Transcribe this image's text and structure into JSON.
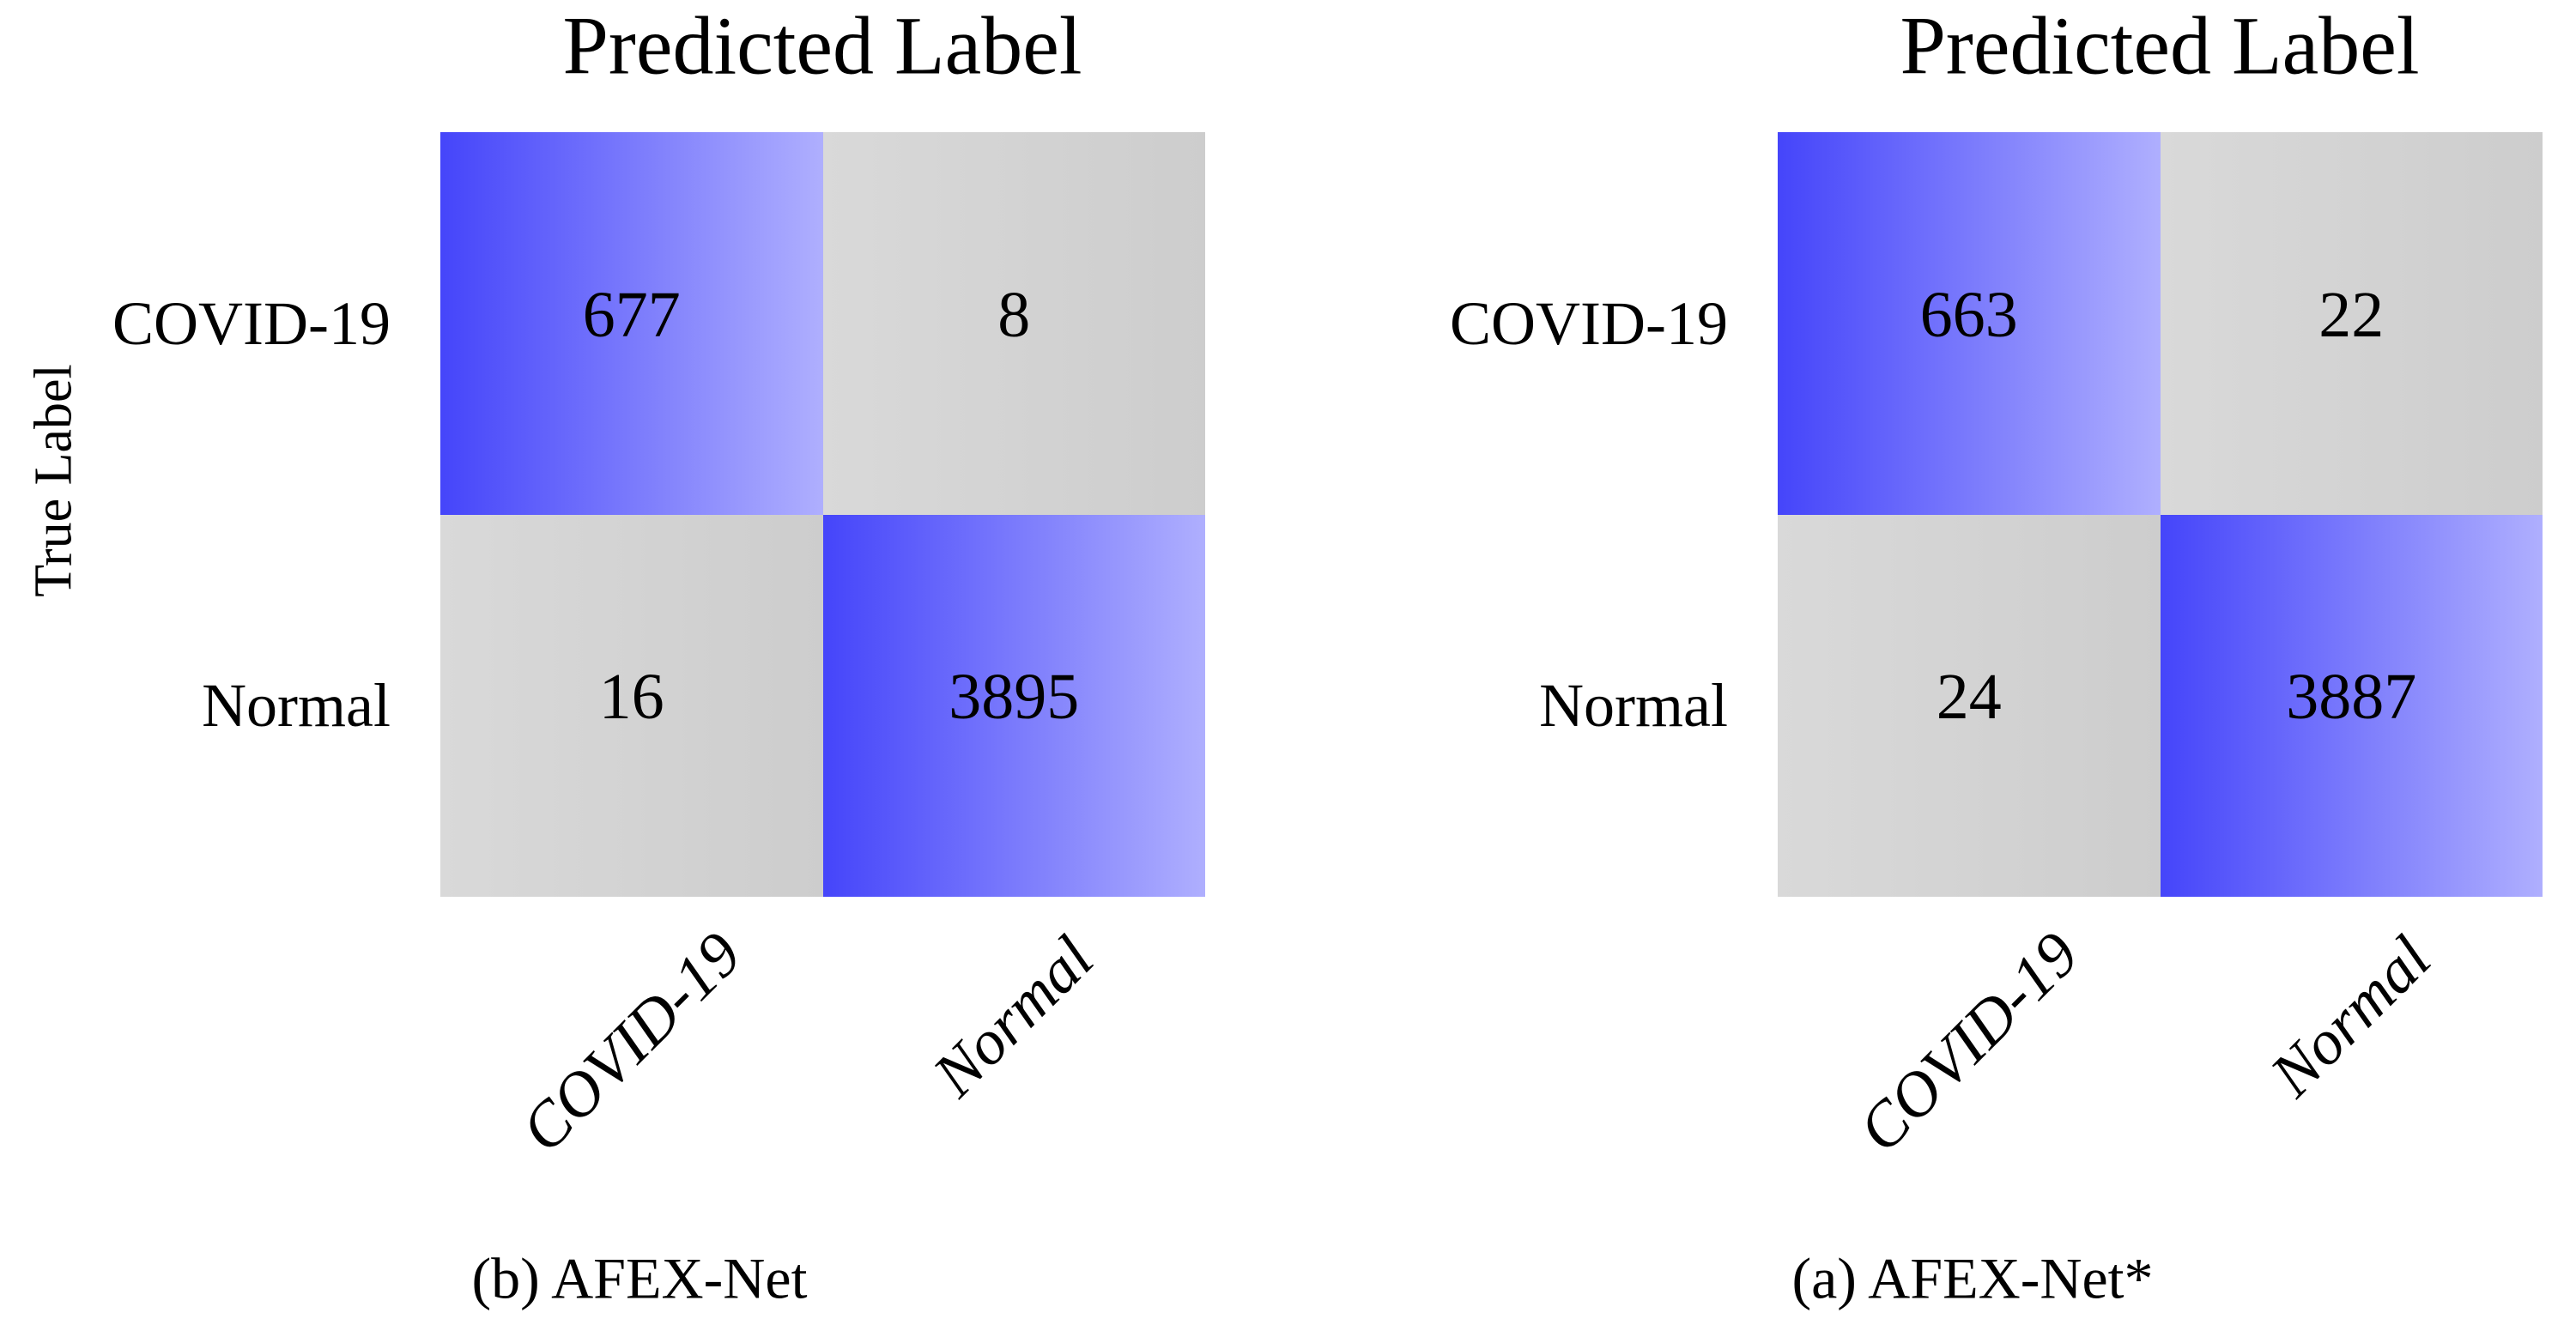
{
  "colors": {
    "blue-start": "#4545FA",
    "blue-end": "#AFAFFE",
    "gray-start": "#D9D9D9",
    "gray-end": "#CDCDCD",
    "text": "#000000",
    "background": "#FFFFFF"
  },
  "panels": [
    {
      "side": "left",
      "title": "Predicted Label",
      "ylabel": "True Label",
      "row_labels": [
        "COVID-19",
        "Normal"
      ],
      "col_labels": [
        "COVID-19",
        "Normal"
      ],
      "cells": [
        [
          677,
          8
        ],
        [
          16,
          3895
        ]
      ],
      "caption": "(b) AFEX-Net"
    },
    {
      "side": "right",
      "title": "Predicted Label",
      "row_labels": [
        "COVID-19",
        "Normal"
      ],
      "col_labels": [
        "COVID-19",
        "Normal"
      ],
      "cells": [
        [
          663,
          22
        ],
        [
          24,
          3887
        ]
      ],
      "caption": "(a) AFEX-Net*"
    }
  ],
  "chart_data": [
    {
      "type": "heatmap",
      "title": "Predicted Label",
      "caption": "(b) AFEX-Net",
      "xlabel": "Predicted Label",
      "ylabel": "True Label",
      "x_categories": [
        "COVID-19",
        "Normal"
      ],
      "y_categories": [
        "COVID-19",
        "Normal"
      ],
      "values": [
        [
          677,
          8
        ],
        [
          16,
          3895
        ]
      ],
      "legend": "none",
      "grid": "off",
      "color_scheme": "high values blue gradient left-to-right, low values gray gradient"
    },
    {
      "type": "heatmap",
      "title": "Predicted Label",
      "caption": "(a) AFEX-Net*",
      "xlabel": "Predicted Label",
      "ylabel": "True Label",
      "x_categories": [
        "COVID-19",
        "Normal"
      ],
      "y_categories": [
        "COVID-19",
        "Normal"
      ],
      "values": [
        [
          663,
          22
        ],
        [
          24,
          3887
        ]
      ],
      "legend": "none",
      "grid": "off",
      "color_scheme": "high values blue gradient left-to-right, low values gray gradient"
    }
  ]
}
